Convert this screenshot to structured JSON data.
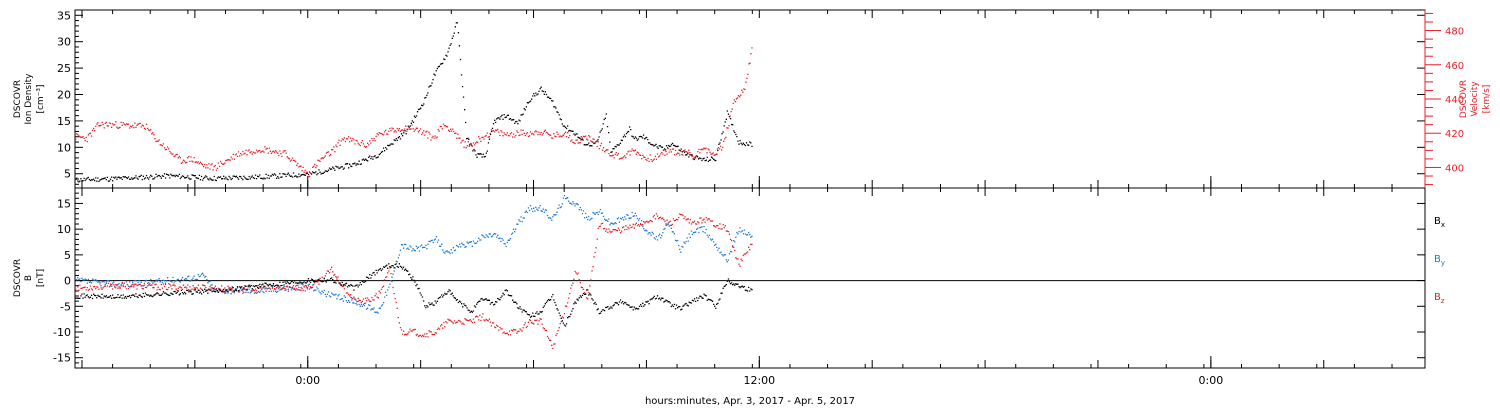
{
  "chart_data": [
    {
      "type": "scatter",
      "panel": "top",
      "ylabel_lines": [
        "DSCOVR",
        "Ion Density",
        "[cm⁻³]"
      ],
      "y2label_lines": [
        "DSCOVR",
        "Velocity",
        "[km/s]"
      ],
      "ylim": [
        2.3,
        36
      ],
      "y2lim": [
        388,
        492
      ],
      "yticks": [
        5,
        10,
        15,
        20,
        25,
        30,
        35
      ],
      "y2ticks": [
        400,
        420,
        440,
        460,
        480
      ],
      "colors": {
        "density": "#000000",
        "velocity": "#e8202a"
      },
      "series": [
        {
          "axis": "left",
          "color": "#000000",
          "x": [
            -10,
            -8,
            -6,
            -4,
            -2,
            0,
            1,
            2,
            3,
            3.5,
            4,
            4.2,
            4.6,
            5,
            5.4,
            6,
            6.4,
            6.8,
            7.2,
            7.6,
            8,
            8.5,
            9,
            9.5,
            10,
            10.5,
            11,
            11.5,
            11.8,
            12,
            12.4,
            12.8,
            13,
            13.4,
            13.8,
            14,
            14.4,
            14.8,
            15.3,
            15.6,
            16.3,
            17,
            17.5,
            18,
            18.5,
            19.1
          ],
          "y": [
            3.8,
            4.1,
            4.6,
            4.1,
            4.4,
            4.9,
            5.8,
            6.8,
            8.6,
            10.5,
            12.2,
            13,
            15.8,
            19,
            23.5,
            28,
            33.8,
            12,
            8.6,
            8.2,
            15,
            16,
            14.5,
            19,
            21,
            18.5,
            14,
            12.5,
            11,
            10.5,
            10.8,
            16,
            9,
            11,
            13.5,
            11.5,
            12,
            10.5,
            9.5,
            10.8,
            8.5,
            7.6,
            7.8,
            16.5,
            11,
            10.5
          ]
        },
        {
          "axis": "right",
          "color": "#e8202a",
          "x": [
            -10,
            -9.5,
            -9,
            -8.5,
            -7,
            -6.5,
            -6,
            -5.5,
            -5,
            -4.5,
            -4,
            -3,
            -2,
            -1,
            0,
            0.5,
            1,
            1.5,
            2,
            2.5,
            3,
            3.5,
            4,
            4.5,
            5,
            5.4,
            5.8,
            6.2,
            6.6,
            7,
            7.5,
            8,
            8.5,
            9,
            9.5,
            10,
            10.5,
            11,
            11.5,
            12,
            12.5,
            13,
            13.5,
            14,
            14.5,
            15,
            15.5,
            16,
            16.3,
            16.6,
            17,
            17.3,
            17.8,
            18.3,
            18.8,
            19.1
          ],
          "y": [
            418,
            417,
            425,
            425,
            424,
            416,
            410,
            404,
            405,
            401,
            400,
            408,
            411,
            408,
            396,
            404,
            409,
            417,
            415,
            413,
            419,
            421,
            423,
            423,
            420,
            417,
            425,
            422,
            414,
            413,
            418,
            421,
            419,
            420,
            420,
            421,
            418,
            420,
            415,
            418,
            413,
            408,
            406,
            410,
            405,
            406,
            410,
            408,
            409,
            406,
            413,
            407,
            412,
            438,
            448,
            473
          ]
        }
      ]
    },
    {
      "type": "scatter",
      "panel": "bottom",
      "ylabel_lines": [
        "DSCOVR",
        "B",
        "[nT]"
      ],
      "ylim": [
        -17,
        18
      ],
      "yticks": [
        -15,
        -10,
        -5,
        0,
        5,
        10,
        15
      ],
      "zero_line": true,
      "legend_position": "right",
      "legend": [
        {
          "name": "B",
          "sub": "x",
          "color": "#000000"
        },
        {
          "name": "B",
          "sub": "y",
          "color": "#1f78d4"
        },
        {
          "name": "B",
          "sub": "z",
          "color": "#e8202a"
        }
      ],
      "series": [
        {
          "name": "Bx",
          "color": "#000000",
          "x": [
            -10,
            -8,
            -6,
            -4,
            -3,
            -2,
            -1,
            0,
            1,
            2,
            3,
            3.5,
            4,
            4.4,
            4.8,
            5,
            5.4,
            6,
            6.4,
            7,
            7.5,
            8,
            8.5,
            9,
            9.5,
            10,
            10.5,
            11,
            11.5,
            12,
            12.5,
            13,
            13.5,
            14,
            14.5,
            15,
            15.5,
            16,
            16.5,
            17,
            17.5,
            18,
            18.5,
            19.1
          ],
          "y": [
            -3,
            -3.2,
            -2.5,
            -2,
            -1.5,
            -1,
            -0.5,
            0,
            0.2,
            -1.5,
            2,
            3,
            2.8,
            1,
            -2,
            -5,
            -4.5,
            -2,
            -4,
            -6,
            -3.5,
            -4.5,
            -2,
            -5,
            -7,
            -6,
            -3,
            -9,
            -4,
            -2,
            -6,
            -5,
            -4,
            -5.5,
            -4.5,
            -3,
            -4.5,
            -5.5,
            -4,
            -3,
            -5,
            0,
            -1,
            -2
          ]
        },
        {
          "name": "By",
          "color": "#1f78d4",
          "x": [
            -10,
            -8,
            -6,
            -5,
            -4.5,
            -4,
            -3,
            -2,
            -1,
            0,
            1,
            2,
            3,
            3.5,
            4,
            4.5,
            5,
            5.5,
            6,
            6.5,
            7,
            7.5,
            8,
            8.5,
            9,
            9.5,
            10,
            10.5,
            11,
            11.5,
            12,
            12.5,
            13,
            13.5,
            14,
            14.5,
            15,
            15.5,
            16,
            16.5,
            17,
            17.5,
            18,
            18.5,
            19.1
          ],
          "y": [
            0,
            -0.8,
            0,
            0.5,
            1,
            -2,
            -2,
            -2,
            -1.5,
            -1,
            -3,
            -4,
            -6,
            -1,
            7,
            6,
            6.5,
            8,
            5,
            7,
            7,
            8.5,
            9,
            7,
            11,
            14,
            14,
            12,
            16,
            15,
            12,
            13.5,
            11,
            12,
            13,
            10,
            8,
            11,
            6,
            9.5,
            10,
            7,
            4,
            10,
            8.5
          ]
        },
        {
          "name": "Bz",
          "color": "#e8202a",
          "x": [
            -10,
            -9,
            -8,
            -7,
            -6,
            -5,
            -4,
            -3,
            -2,
            -1,
            0,
            0.5,
            1,
            1.5,
            2,
            2.5,
            3,
            3.5,
            4,
            4.5,
            5,
            5.5,
            6,
            6.5,
            7,
            7.5,
            8,
            8.5,
            9,
            9.5,
            10,
            10.5,
            11,
            11.5,
            12,
            12.5,
            13,
            13.5,
            14,
            14.5,
            15,
            15.5,
            16,
            16.5,
            17,
            17.5,
            18,
            18.5,
            19.1
          ],
          "y": [
            -1.5,
            -1.2,
            -1,
            -1.2,
            -1.3,
            -1.3,
            -1.5,
            -1.8,
            -1.5,
            -1.5,
            -1.5,
            0,
            2,
            -1,
            -4,
            -4,
            -3,
            2,
            -10,
            -10,
            -10.5,
            -10,
            -8,
            -8,
            -8,
            -7,
            -9,
            -10,
            -10,
            -8,
            -8,
            -13,
            -6,
            2,
            -4,
            11,
            9.5,
            10,
            10.5,
            11.5,
            12.5,
            11,
            12.5,
            11,
            12,
            11,
            10,
            3,
            7.5
          ]
        }
      ]
    }
  ],
  "x_axis": {
    "title": "hours:minutes, Apr.  3, 2017 - Apr.  5, 2017",
    "xlim": [
      -10,
      48
    ],
    "tick_labels": [
      {
        "x": 0,
        "label": "0:00"
      },
      {
        "x": 19.4,
        "label": "12:00"
      },
      {
        "x": 38.8,
        "label": "0:00"
      }
    ]
  },
  "legend_labels": {
    "bx_name": "B",
    "bx_sub": "x",
    "by_name": "B",
    "by_sub": "y",
    "bz_name": "B",
    "bz_sub": "z"
  }
}
